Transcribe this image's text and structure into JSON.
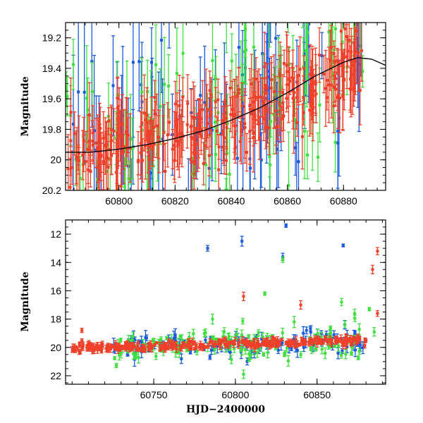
{
  "colors": {
    "blue": "#1a5adf",
    "green": "#3fe03f",
    "red": "#f0402a",
    "model": "#000000"
  },
  "chart_data": [
    {
      "type": "scatter",
      "title": "",
      "xlabel": "",
      "ylabel": "Magnitude",
      "xlim": [
        60781,
        60895
      ],
      "ylim": [
        20.2,
        19.1
      ],
      "y_inverted": true,
      "x_ticks": [
        60800,
        60820,
        60840,
        60860,
        60880
      ],
      "x_tick_labels": [
        "60800",
        "60820",
        "60840",
        "60860",
        "60880"
      ],
      "y_ticks": [
        19.2,
        19.4,
        19.6,
        19.8,
        20,
        20.2
      ],
      "y_tick_labels": [
        "19.2",
        "19.4",
        "19.6",
        "19.8",
        "20",
        "20.2"
      ],
      "model_curve": {
        "x": [
          60781,
          60790,
          60800,
          60810,
          60820,
          60830,
          60840,
          60850,
          60860,
          60870,
          60880,
          60885,
          60890,
          60895
        ],
        "y": [
          19.95,
          19.95,
          19.93,
          19.9,
          19.86,
          19.81,
          19.74,
          19.66,
          19.56,
          19.45,
          19.36,
          19.33,
          19.34,
          19.38
        ]
      },
      "series": [
        {
          "color_key": "blue",
          "trend": [
            [
              60781,
              19.95
            ],
            [
              60840,
              19.75
            ],
            [
              60880,
              19.45
            ],
            [
              60888,
              19.4
            ]
          ],
          "scatter": 0.35,
          "err": [
            0.15,
            0.5
          ],
          "count": 90
        },
        {
          "color_key": "green",
          "trend": [
            [
              60781,
              19.9
            ],
            [
              60840,
              19.7
            ],
            [
              60880,
              19.35
            ],
            [
              60888,
              19.35
            ]
          ],
          "scatter": 0.3,
          "err": [
            0.1,
            0.35
          ],
          "count": 110
        },
        {
          "color_key": "red",
          "trend": [
            [
              60781,
              19.95
            ],
            [
              60840,
              19.75
            ],
            [
              60880,
              19.4
            ],
            [
              60887,
              19.3
            ]
          ],
          "scatter": 0.12,
          "err": [
            0.08,
            0.25
          ],
          "count": 320
        }
      ]
    },
    {
      "type": "scatter",
      "title": "",
      "xlabel": "HJD−2400000",
      "ylabel": "Magnitude",
      "xlim": [
        60696,
        60892
      ],
      "ylim": [
        22.6,
        11
      ],
      "y_inverted": true,
      "x_ticks": [
        60750,
        60800,
        60850
      ],
      "x_tick_labels": [
        "60750",
        "60800",
        "60850"
      ],
      "y_ticks": [
        12,
        14,
        16,
        18,
        20,
        22
      ],
      "y_tick_labels": [
        "12",
        "14",
        "16",
        "18",
        "20",
        "22"
      ],
      "series": [
        {
          "color_key": "blue",
          "trend": [
            [
              60725,
              20.0
            ],
            [
              60880,
              19.5
            ]
          ],
          "scatter": 0.45,
          "err": [
            0.1,
            0.5
          ],
          "count": 120,
          "outliers": [
            [
              60783,
              13.0,
              0.2
            ],
            [
              60804,
              12.5,
              0.35
            ],
            [
              60829,
              13.6,
              0.25
            ],
            [
              60831,
              11.4,
              0.12
            ],
            [
              60866,
              12.8,
              0.1
            ],
            [
              60867,
              18.4,
              0.3
            ]
          ]
        },
        {
          "color_key": "green",
          "trend": [
            [
              60725,
              20.0
            ],
            [
              60880,
              19.6
            ]
          ],
          "scatter": 0.6,
          "err": [
            0.1,
            0.4
          ],
          "count": 150,
          "outliers": [
            [
              60786,
              18.0,
              0.35
            ],
            [
              60805,
              21.9,
              0.3
            ],
            [
              60818,
              16.2,
              0.12
            ],
            [
              60829,
              13.8,
              0.2
            ],
            [
              60836,
              18.2,
              0.4
            ],
            [
              60865,
              16.8,
              0.25
            ],
            [
              60873,
              17.6,
              0.3
            ],
            [
              60882,
              17.3,
              0.12
            ],
            [
              60885,
              18.9,
              0.3
            ]
          ]
        },
        {
          "color_key": "red",
          "trend": [
            [
              60700,
              20.05
            ],
            [
              60725,
              20.0
            ],
            [
              60880,
              19.5
            ]
          ],
          "scatter": 0.15,
          "err": [
            0.08,
            0.25
          ],
          "count": 320,
          "outliers": [
            [
              60706,
              18.8,
              0.15
            ],
            [
              60805,
              16.4,
              0.3
            ],
            [
              60840,
              17.0,
              0.3
            ],
            [
              60884,
              14.5,
              0.3
            ],
            [
              60887,
              13.2,
              0.25
            ],
            [
              60887,
              17.6,
              0.2
            ]
          ]
        }
      ]
    }
  ]
}
